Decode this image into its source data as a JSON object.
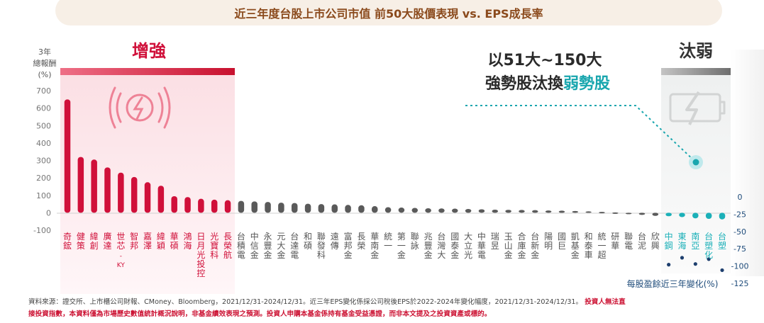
{
  "title": "近三年度台股上市公司市值 前50大股價表現 vs. EPS成長率",
  "left_axis_label": [
    "3年",
    "總報酬",
    "(%)"
  ],
  "right_axis_label": "每股盈餘近三年變化(%)",
  "section_strong": "增強",
  "section_weak": "汰弱",
  "annotation_line1": "以51大~150大",
  "annotation_line2_a": "強勢股汰換",
  "annotation_line2_b": "弱勢股",
  "footnote_1": "資料來源：證交所、上市櫃公司財報、CMoney、Bloomberg，2021/12/31-2024/12/31。近三年EPS變化係採公司稅後EPS於2022-2024年變化幅度，2021/12/31-2024/12/31。",
  "footnote_warn_1": "投資人無法直",
  "footnote_warn_2": "接投資指數，本資料僅為市場歷史數值統計概況說明，非基金績效表現之預測。投資人申購本基金係持有基金受益憑證，而非本文提及之投資資產或標的。",
  "colors": {
    "strong": "#d0103a",
    "middle": "#5a5a5a",
    "weak": "#1bb0b8",
    "title_text": "#8b4a1c",
    "annotation_accent": "#19a6ae"
  },
  "chart_data": {
    "type": "bar",
    "left_axis": {
      "ylim": [
        -100,
        700
      ],
      "ticks": [
        700,
        600,
        500,
        400,
        300,
        200,
        100,
        0,
        -100
      ]
    },
    "right_axis": {
      "ylim": [
        -125,
        0
      ],
      "ticks": [
        0,
        -25,
        -50,
        -75,
        -100,
        -125
      ]
    },
    "bars": [
      {
        "name": "奇鋐",
        "value": 650,
        "group": "strong"
      },
      {
        "name": "健策",
        "value": 320,
        "group": "strong"
      },
      {
        "name": "緯創",
        "value": 305,
        "group": "strong"
      },
      {
        "name": "廣達",
        "value": 260,
        "group": "strong"
      },
      {
        "name": "世芯-KY",
        "value": 230,
        "group": "strong"
      },
      {
        "name": "智邦",
        "value": 205,
        "group": "strong"
      },
      {
        "name": "嘉澤",
        "value": 175,
        "group": "strong"
      },
      {
        "name": "緯穎",
        "value": 155,
        "group": "strong"
      },
      {
        "name": "華碩",
        "value": 95,
        "group": "strong"
      },
      {
        "name": "鴻海",
        "value": 90,
        "group": "strong"
      },
      {
        "name": "日月光投控",
        "value": 80,
        "group": "strong"
      },
      {
        "name": "光寶科",
        "value": 75,
        "group": "strong"
      },
      {
        "name": "長榮航",
        "value": 72,
        "group": "strong"
      },
      {
        "name": "台積電",
        "value": 68,
        "group": "middle"
      },
      {
        "name": "中信金",
        "value": 65,
        "group": "middle"
      },
      {
        "name": "永豐金",
        "value": 62,
        "group": "middle"
      },
      {
        "name": "元大金",
        "value": 58,
        "group": "middle"
      },
      {
        "name": "台達電",
        "value": 56,
        "group": "middle"
      },
      {
        "name": "和碩",
        "value": 52,
        "group": "middle"
      },
      {
        "name": "聯發科",
        "value": 50,
        "group": "middle"
      },
      {
        "name": "遠傳",
        "value": 48,
        "group": "middle"
      },
      {
        "name": "富邦金",
        "value": 45,
        "group": "middle"
      },
      {
        "name": "長榮",
        "value": 43,
        "group": "middle"
      },
      {
        "name": "華南金",
        "value": 38,
        "group": "middle"
      },
      {
        "name": "統一",
        "value": 32,
        "group": "middle"
      },
      {
        "name": "第一金",
        "value": 30,
        "group": "middle"
      },
      {
        "name": "聯詠",
        "value": 28,
        "group": "middle"
      },
      {
        "name": "兆豐金",
        "value": 26,
        "group": "middle"
      },
      {
        "name": "台灣大",
        "value": 25,
        "group": "middle"
      },
      {
        "name": "國泰金",
        "value": 24,
        "group": "middle"
      },
      {
        "name": "大立光",
        "value": 22,
        "group": "middle"
      },
      {
        "name": "中華電",
        "value": 20,
        "group": "middle"
      },
      {
        "name": "瑞昱",
        "value": 18,
        "group": "middle"
      },
      {
        "name": "玉山金",
        "value": 17,
        "group": "middle"
      },
      {
        "name": "合庫金",
        "value": 16,
        "group": "middle"
      },
      {
        "name": "台新金",
        "value": 15,
        "group": "middle"
      },
      {
        "name": "陽明",
        "value": 13,
        "group": "middle"
      },
      {
        "name": "國巨",
        "value": 12,
        "group": "middle"
      },
      {
        "name": "凱基金",
        "value": 10,
        "group": "middle"
      },
      {
        "name": "和泰車",
        "value": 8,
        "group": "middle"
      },
      {
        "name": "統一超",
        "value": 5,
        "group": "middle"
      },
      {
        "name": "研華",
        "value": 2,
        "group": "middle"
      },
      {
        "name": "聯電",
        "value": -5,
        "group": "middle"
      },
      {
        "name": "台泥",
        "value": -12,
        "group": "middle"
      },
      {
        "name": "欣興",
        "value": -18,
        "group": "middle"
      },
      {
        "name": "中鋼",
        "value": -20,
        "group": "weak"
      },
      {
        "name": "東海",
        "value": -25,
        "group": "weak"
      },
      {
        "name": "南亞",
        "value": -32,
        "group": "weak"
      },
      {
        "name": "台塑化",
        "value": -35,
        "group": "weak"
      },
      {
        "name": "台塑",
        "value": -38,
        "group": "weak"
      }
    ],
    "eps_change_points": [
      {
        "name": "中鋼",
        "value": -98
      },
      {
        "name": "東海",
        "value": -88
      },
      {
        "name": "南亞",
        "value": -97
      },
      {
        "name": "台塑化",
        "value": -90
      },
      {
        "name": "台塑",
        "value": -106
      }
    ]
  }
}
